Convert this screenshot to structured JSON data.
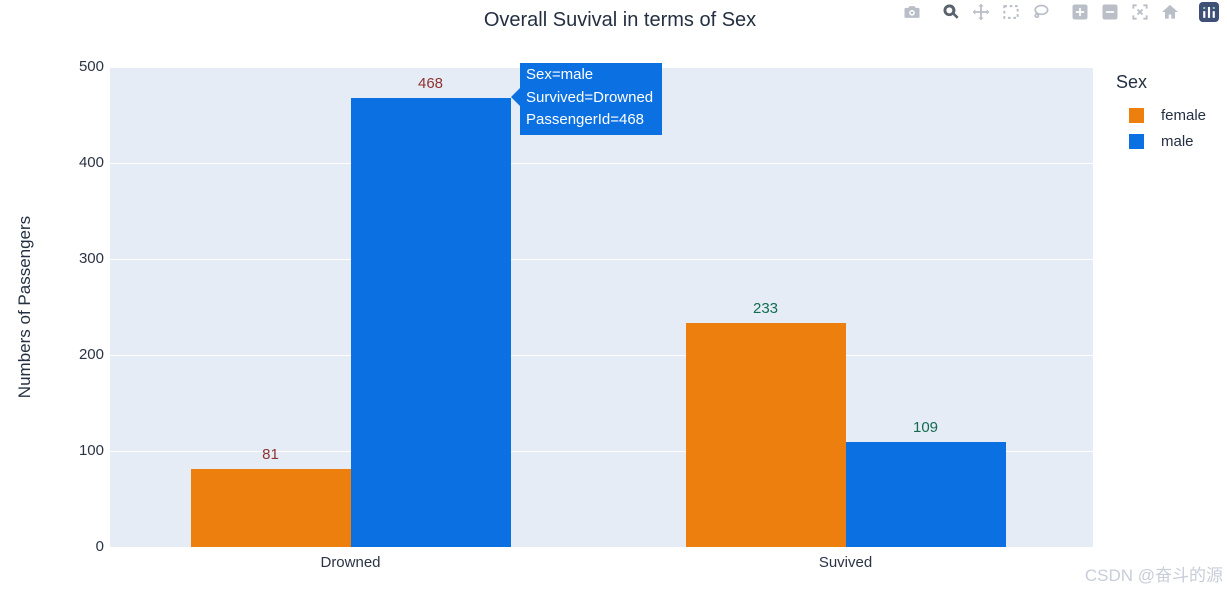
{
  "title": "Overall Suvival in terms of Sex",
  "modebar": {
    "icons": [
      "camera-icon",
      "zoom-icon",
      "pan-icon",
      "box-select-icon",
      "lasso-select-icon",
      "zoom-in-icon",
      "zoom-out-icon",
      "autoscale-icon",
      "reset-axes-home-icon",
      "plotly-logo-icon"
    ],
    "active_icon": "zoom-icon",
    "icon_color": "#b9bec7",
    "active_icon_color": "#5a626c",
    "logo_bg_color": "#3f4f75"
  },
  "tooltip": {
    "lines": [
      "Sex=male",
      "Survived=Drowned",
      "PassengerId=468"
    ],
    "bg": "#0b70e1",
    "text_color": "#ffffff"
  },
  "legend": {
    "title": "Sex",
    "items": [
      {
        "label": "female",
        "color": "#ed7f0e"
      },
      {
        "label": "male",
        "color": "#0b70e1"
      }
    ]
  },
  "chart_data": {
    "type": "bar",
    "title": "Overall Suvival in terms of Sex",
    "categories": [
      "Drowned",
      "Suvived"
    ],
    "series": [
      {
        "name": "female",
        "color": "#ed7f0e",
        "values": [
          81,
          233
        ]
      },
      {
        "name": "male",
        "color": "#0b70e1",
        "values": [
          468,
          109
        ]
      }
    ],
    "bar_value_labels": true,
    "bar_label_colors_by_category": [
      "#8e3330",
      "#136c50"
    ],
    "xlabel": "",
    "ylabel": "Numbers of Passengers",
    "ylim": [
      0,
      500
    ],
    "yticks": [
      0,
      100,
      200,
      300,
      400,
      500
    ],
    "grid": true,
    "grid_color": "#ffffff",
    "plot_bg": "#e5ecf6",
    "legend_position": "right"
  },
  "watermark": "CSDN @奋斗的源"
}
